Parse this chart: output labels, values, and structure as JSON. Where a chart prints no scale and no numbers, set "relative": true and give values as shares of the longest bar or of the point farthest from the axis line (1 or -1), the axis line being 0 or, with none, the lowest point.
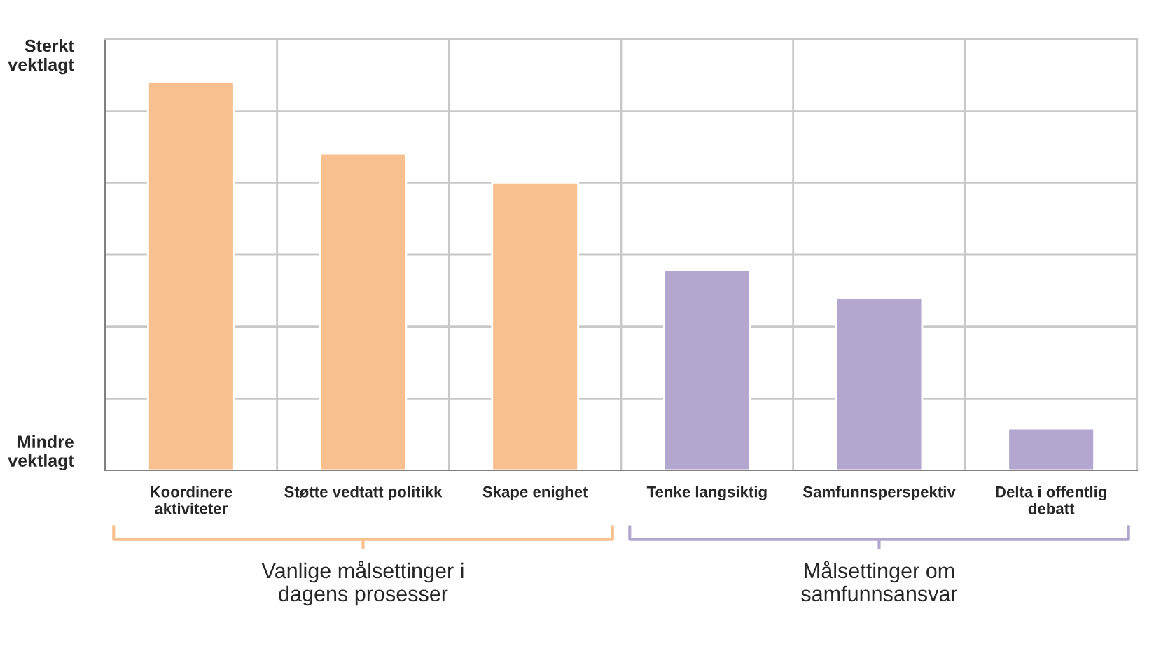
{
  "chart_data": {
    "type": "bar",
    "relative": true,
    "grid": true,
    "categories": [
      "Koordinere\naktiviteter",
      "Støtte vedtatt politikk",
      "Skape enighet",
      "Tenke langsiktig",
      "Samfunnsperspektiv",
      "Delta i offentlig\ndebatt"
    ],
    "series": [
      {
        "color": "#f9c08f",
        "values": [
          1,
          0.816,
          0.74,
          null,
          null,
          null
        ]
      },
      {
        "color": "#b4a7cf",
        "values": [
          null,
          null,
          null,
          0.516,
          0.444,
          0.108
        ]
      }
    ],
    "annotations": [
      "Sterkt\nvektlagt",
      "Mindre\nvektlagt",
      "Vanlige målsettinger i\ndagens prosesser",
      "Målsettinger om\nsamfunnsansvar"
    ]
  }
}
